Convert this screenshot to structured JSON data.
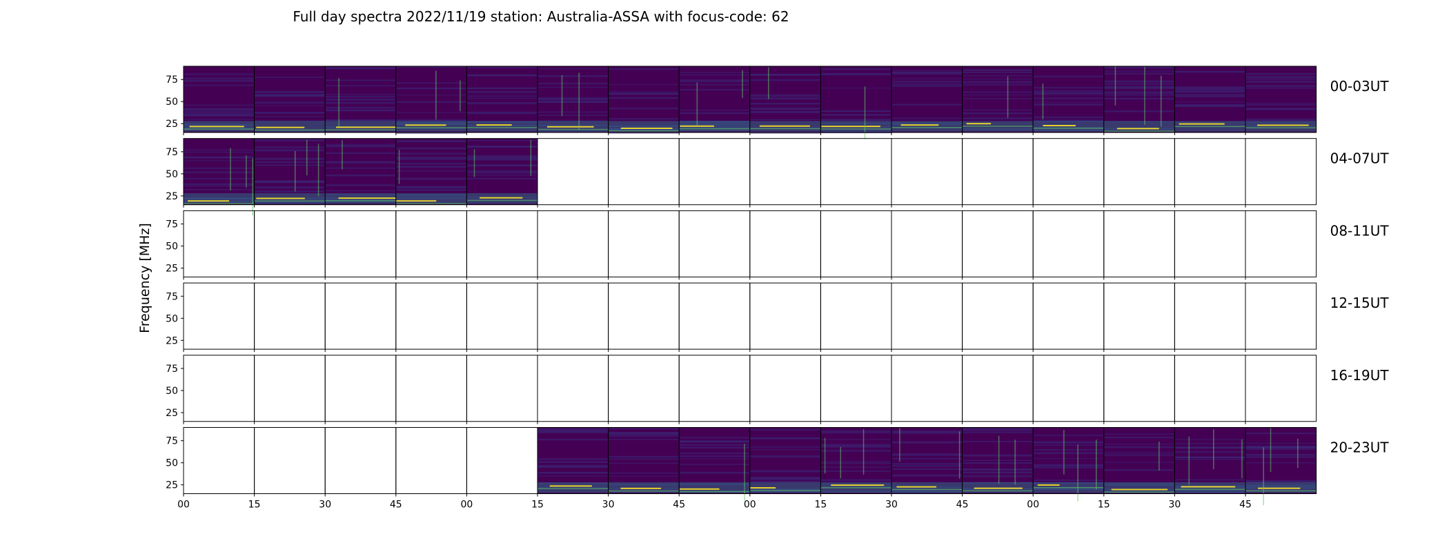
{
  "chart_data": {
    "type": "heatmap",
    "title": "Full day spectra 2022/11/19 station: Australia-ASSA with focus-code: 62",
    "ylabel": "Frequency [MHz]",
    "xlabel": "",
    "ylim": [
      15,
      90
    ],
    "y_ticks": [
      "75",
      "50",
      "25"
    ],
    "y_tick_values": [
      75,
      50,
      25
    ],
    "x_ticks": [
      "00",
      "15",
      "30",
      "45",
      "00",
      "15",
      "30",
      "45",
      "00",
      "15",
      "30",
      "45",
      "00",
      "15",
      "30",
      "45"
    ],
    "grid": false,
    "colormap": "viridis",
    "panels_per_row": 16,
    "panel_minutes": 15,
    "rows": [
      {
        "label": "00-03UT",
        "available": [
          true,
          true,
          true,
          true,
          true,
          true,
          true,
          true,
          true,
          true,
          true,
          true,
          true,
          true,
          true,
          true
        ]
      },
      {
        "label": "04-07UT",
        "available": [
          true,
          true,
          true,
          true,
          true,
          false,
          false,
          false,
          false,
          false,
          false,
          false,
          false,
          false,
          false,
          false
        ]
      },
      {
        "label": "08-11UT",
        "available": [
          false,
          false,
          false,
          false,
          false,
          false,
          false,
          false,
          false,
          false,
          false,
          false,
          false,
          false,
          false,
          false
        ]
      },
      {
        "label": "12-15UT",
        "available": [
          false,
          false,
          false,
          false,
          false,
          false,
          false,
          false,
          false,
          false,
          false,
          false,
          false,
          false,
          false,
          false
        ]
      },
      {
        "label": "16-19UT",
        "available": [
          false,
          false,
          false,
          false,
          false,
          false,
          false,
          false,
          false,
          false,
          false,
          false,
          false,
          false,
          false,
          false
        ]
      },
      {
        "label": "20-23UT",
        "available": [
          false,
          false,
          false,
          false,
          false,
          true,
          true,
          true,
          true,
          true,
          true,
          true,
          true,
          true,
          true,
          true
        ]
      }
    ],
    "colors": {
      "background": "#440154",
      "low": "#3b2a7a",
      "mid": "#2c7f8e",
      "high": "#5ec962",
      "peak": "#fde725"
    }
  }
}
